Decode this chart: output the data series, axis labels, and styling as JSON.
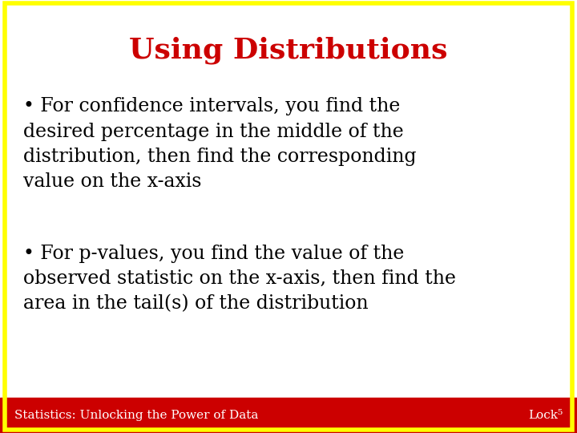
{
  "title": "Using Distributions",
  "title_color": "#cc0000",
  "title_fontsize": 26,
  "title_fontweight": "bold",
  "bullet1_lines": [
    "• For confidence intervals, you find the",
    "desired percentage in the middle of the",
    "distribution, then find the corresponding",
    "value on the x-axis"
  ],
  "bullet2_lines": [
    "• For p-values, you find the value of the",
    "observed statistic on the x-axis, then find the",
    "area in the tail(s) of the distribution"
  ],
  "body_fontsize": 17,
  "body_color": "#000000",
  "background_color": "#ffffff",
  "border_color": "#ffff00",
  "border_linewidth": 4,
  "footer_bg_color": "#cc0000",
  "footer_text_left": "Statistics: Unlocking the Power of Data",
  "footer_text_right": "Lock⁵",
  "footer_fontsize": 11,
  "footer_text_color": "#ffffff",
  "fig_width": 7.2,
  "fig_height": 5.4,
  "dpi": 100
}
